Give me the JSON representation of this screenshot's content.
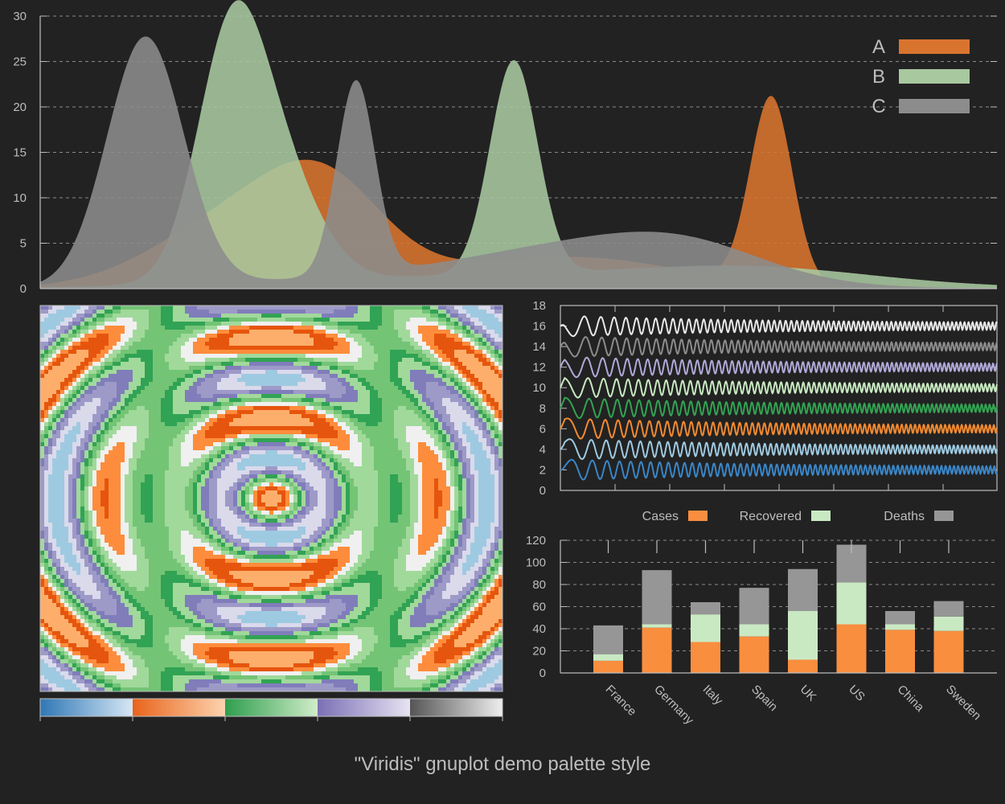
{
  "caption": "\"Viridis\" gnuplot demo palette style",
  "colors": {
    "background": "#222222",
    "axis": "#bdbdbd",
    "grid": "#8a8a8a",
    "orange": "#d9742f",
    "green": "#a8c8a0",
    "gray": "#8c8c8c"
  },
  "chart_data": [
    {
      "type": "area",
      "title": "",
      "xlabel": "",
      "ylabel": "",
      "ylim": [
        0,
        30
      ],
      "yticks": [
        "0",
        "5",
        "10",
        "15",
        "20",
        "25",
        "30"
      ],
      "grid": true,
      "legend_position": "top-right",
      "series": [
        {
          "name": "A",
          "color": "#d9742f",
          "peaks": [
            {
              "x": 0.22,
              "h": 8.5,
              "w": 0.09
            },
            {
              "x": 0.3,
              "h": 7.5,
              "w": 0.06
            },
            {
              "x": 0.55,
              "h": 3.5,
              "w": 0.12
            },
            {
              "x": 0.764,
              "h": 20.5,
              "w": 0.022
            }
          ]
        },
        {
          "name": "B",
          "color": "#a8c8a0",
          "peaks": [
            {
              "x": 0.2,
              "h": 26.7,
              "w": 0.036
            },
            {
              "x": 0.255,
              "h": 10,
              "w": 0.04
            },
            {
              "x": 0.495,
              "h": 23.5,
              "w": 0.025
            },
            {
              "x": 0.52,
              "h": 1.5,
              "w": 0.25
            },
            {
              "x": 0.75,
              "h": 1.5,
              "w": 0.12
            }
          ]
        },
        {
          "name": "C",
          "color": "#8c8c8c",
          "peaks": [
            {
              "x": 0.11,
              "h": 27.4,
              "w": 0.04
            },
            {
              "x": 0.33,
              "h": 21.3,
              "w": 0.02
            },
            {
              "x": 0.58,
              "h": 3.5,
              "w": 0.12
            },
            {
              "x": 0.68,
              "h": 2.5,
              "w": 0.08
            },
            {
              "x": 0.45,
              "h": 1.5,
              "w": 0.2
            }
          ]
        }
      ]
    },
    {
      "type": "heatmap",
      "title": "",
      "colorbar_palettes": [
        "#2f77b5",
        "#e8641c",
        "#2f9e4e",
        "#7b6fb5",
        "#555555"
      ],
      "colorbar_ends": [
        "#d6e7f5",
        "#fdd3ae",
        "#d0edc9",
        "#e7e3f2",
        "#eeeeee"
      ]
    },
    {
      "type": "line",
      "title": "",
      "ylim": [
        0,
        18
      ],
      "yticks": [
        "0",
        "2",
        "4",
        "6",
        "8",
        "10",
        "12",
        "14",
        "16",
        "18"
      ],
      "series": [
        {
          "offset": 2,
          "color": "#3a86c8"
        },
        {
          "offset": 4,
          "color": "#9ecae1"
        },
        {
          "offset": 6,
          "color": "#f28a30"
        },
        {
          "offset": 8,
          "color": "#33a353"
        },
        {
          "offset": 10,
          "color": "#c7e9c0"
        },
        {
          "offset": 12,
          "color": "#b0a9d8"
        },
        {
          "offset": 14,
          "color": "#8c8c8c"
        },
        {
          "offset": 16,
          "color": "#e8e8e8"
        }
      ]
    },
    {
      "type": "bar",
      "stacked": true,
      "title": "",
      "ylim": [
        0,
        120
      ],
      "yticks": [
        "0",
        "20",
        "40",
        "60",
        "80",
        "100",
        "120"
      ],
      "categories": [
        "France",
        "Germany",
        "Italy",
        "Spain",
        "UK",
        "US",
        "China",
        "Sweden"
      ],
      "legend_position": "top",
      "series": [
        {
          "name": "Cases",
          "color": "#f98e3f",
          "values": [
            11,
            41,
            28,
            33,
            12,
            44,
            39,
            38
          ]
        },
        {
          "name": "Recovered",
          "color": "#c9e9c3",
          "values": [
            6,
            3,
            25,
            11,
            44,
            38,
            5,
            13
          ]
        },
        {
          "name": "Deaths",
          "color": "#969696",
          "values": [
            26,
            49,
            11,
            33,
            38,
            34,
            12,
            14
          ]
        }
      ]
    }
  ]
}
